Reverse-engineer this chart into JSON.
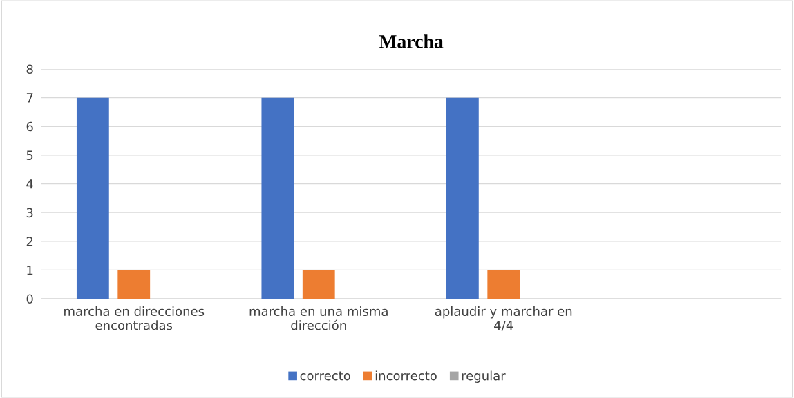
{
  "chart_data": {
    "type": "bar",
    "title": "Marcha",
    "categories": [
      "marcha en direcciones encontradas",
      "marcha en una misma dirección",
      "aplaudir y marchar en 4/4",
      null
    ],
    "series": [
      {
        "name": "correcto",
        "color": "#4472c4",
        "values": [
          7,
          7,
          7,
          null
        ]
      },
      {
        "name": "incorrecto",
        "color": "#ed7d31",
        "values": [
          1,
          1,
          1,
          null
        ]
      },
      {
        "name": "regular",
        "color": "#a5a5a5",
        "values": [
          0,
          0,
          0,
          null
        ]
      }
    ],
    "ylim": [
      0,
      8
    ],
    "yticks": [
      0,
      1,
      2,
      3,
      4,
      5,
      6,
      7,
      8
    ],
    "grid": "y",
    "legend": "bottom"
  }
}
